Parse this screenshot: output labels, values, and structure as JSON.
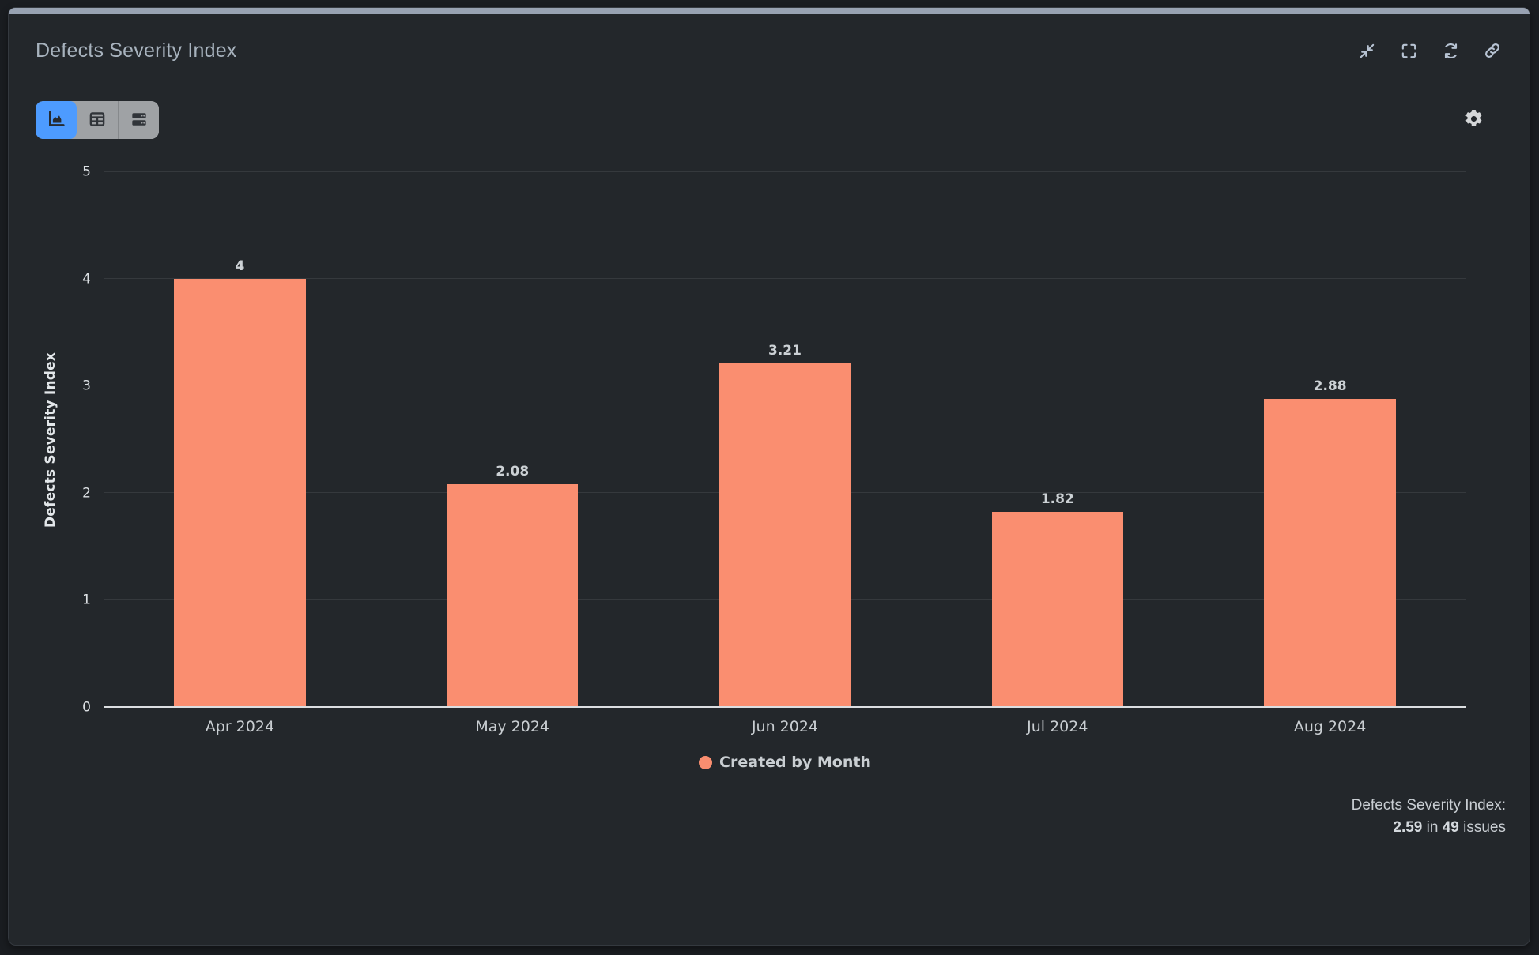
{
  "panel": {
    "title": "Defects Severity Index"
  },
  "icons": {
    "header": [
      "collapse-icon",
      "fullscreen-icon",
      "refresh-icon",
      "link-icon"
    ],
    "settings": "gear-icon",
    "view_toggle": [
      "area-chart-icon",
      "table-icon",
      "drill-rows-icon"
    ]
  },
  "chart_data": {
    "type": "bar",
    "title": "",
    "categories": [
      "Apr 2024",
      "May 2024",
      "Jun 2024",
      "Jul 2024",
      "Aug 2024"
    ],
    "values": [
      4,
      2.08,
      3.21,
      1.82,
      2.88
    ],
    "value_labels": [
      "4",
      "2.08",
      "3.21",
      "1.82",
      "2.88"
    ],
    "series_name": "Created by Month",
    "legend": "Created by Month",
    "legend_position": "bottom",
    "xlabel": "",
    "ylabel": "Defects Severity Index",
    "ylim": [
      0,
      5
    ],
    "yticks": [
      0,
      1,
      2,
      3,
      4,
      5
    ],
    "grid": true,
    "bar_color": "#fa8e70"
  },
  "footer": {
    "label": "Defects Severity Index:",
    "value": "2.59",
    "in_word": "in",
    "count": "49",
    "issues_word": "issues"
  },
  "colors": {
    "panel_bg": "#23272b",
    "outer_bg": "#1a1d21",
    "top_handle": "#98a2b2",
    "active_view_bg": "#4d9bff",
    "inactive_view_bg": "#9fa2a5",
    "bar": "#fa8e70",
    "gridline": "#35393d",
    "axis_line": "#dbdee1",
    "title_text": "#a7b2bd",
    "chart_text": "#c9ced2"
  }
}
